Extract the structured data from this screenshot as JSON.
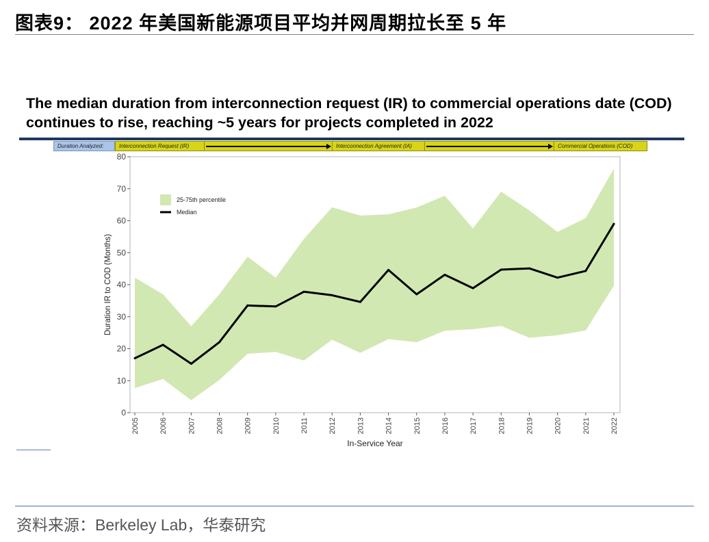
{
  "figure_title": "图表9： 2022 年美国新能源项目平均并网周期拉长至 5 年",
  "source": "资料来源：Berkeley Lab，华泰研究",
  "stages": {
    "label": "Duration Analyzed:",
    "ir": "Interconnection Request (IR)",
    "ia": "Interconnection Agreement (IA)",
    "cod": "Commercial Operations (COD)"
  },
  "chart_data": {
    "type": "area",
    "title": "The median duration from interconnection request (IR) to commercial operations date (COD) continues to rise, reaching ~5 years for projects completed in 2022",
    "xlabel": "In-Service Year",
    "ylabel": "Duration IR to COD (Months)",
    "ylim": [
      0,
      80
    ],
    "yticks": [
      0,
      10,
      20,
      30,
      40,
      50,
      60,
      70,
      80
    ],
    "grid": false,
    "legend_position": "top-left",
    "x": [
      "2005",
      "2006",
      "2007",
      "2008",
      "2009",
      "2010",
      "2011",
      "2012",
      "2013",
      "2014",
      "2015",
      "2016",
      "2017",
      "2018",
      "2019",
      "2020",
      "2021",
      "2022"
    ],
    "series": [
      {
        "name": "25-75th percentile",
        "kind": "band",
        "color": "#d2e8b2",
        "lower": [
          7.7,
          10.5,
          3.9,
          10.2,
          18.4,
          19.0,
          16.3,
          22.8,
          18.7,
          23.0,
          22.0,
          25.6,
          26.1,
          27.1,
          23.4,
          24.2,
          25.7,
          39.7
        ],
        "upper": [
          42.2,
          37.0,
          27.0,
          37.0,
          48.7,
          42.2,
          54.3,
          64.2,
          61.6,
          62.0,
          64.1,
          67.8,
          57.6,
          69.1,
          63.2,
          56.5,
          60.8,
          76.3
        ]
      },
      {
        "name": "Median",
        "kind": "line",
        "color": "#000000",
        "values": [
          17.0,
          21.2,
          15.3,
          22.0,
          33.5,
          33.2,
          37.8,
          36.7,
          34.6,
          44.6,
          37.0,
          43.1,
          38.9,
          44.7,
          45.1,
          42.2,
          44.3,
          59.0
        ]
      }
    ]
  }
}
